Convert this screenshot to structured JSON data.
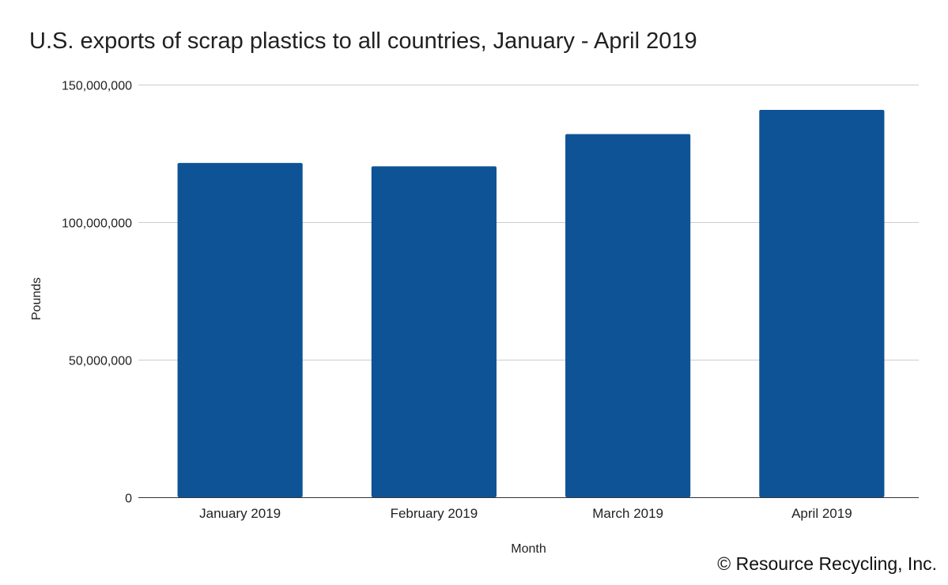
{
  "chart_data": {
    "type": "bar",
    "title": "U.S. exports of scrap plastics to all countries, January - April 2019",
    "xlabel": "Month",
    "ylabel": "Pounds",
    "categories": [
      "January 2019",
      "February 2019",
      "March 2019",
      "April 2019"
    ],
    "series": [
      {
        "values": [
          121500000,
          120300000,
          132000000,
          140800000
        ]
      }
    ],
    "ylim": [
      0,
      150000000
    ],
    "yticks": [
      0,
      50000000,
      100000000,
      150000000
    ],
    "ytick_labels": [
      "0",
      "50,000,000",
      "100,000,000",
      "150,000,000"
    ],
    "grid": true,
    "legend": "none",
    "bar_color": "#0e5395"
  },
  "footer": {
    "copyright": "© Resource Recycling, Inc."
  }
}
